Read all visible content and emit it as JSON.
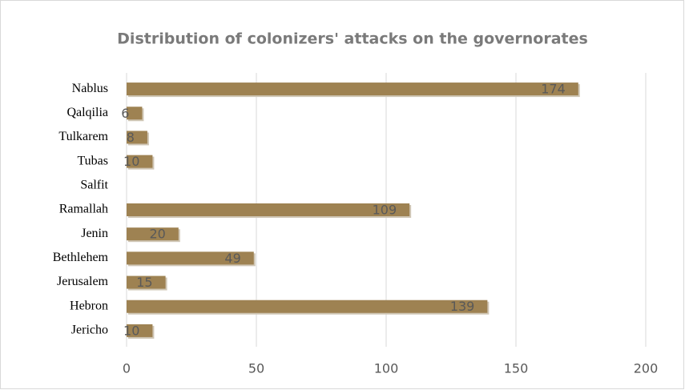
{
  "chart_data": {
    "type": "bar",
    "orientation": "horizontal",
    "title": "Distribution of colonizers' attacks on the governorates",
    "categories": [
      "Nablus",
      "Qalqilia",
      "Tulkarem",
      "Tubas",
      "Salfit",
      "Ramallah",
      "Jenin",
      "Bethlehem",
      "Jerusalem",
      "Hebron",
      "Jericho"
    ],
    "values": [
      174,
      6,
      8,
      10,
      null,
      109,
      20,
      49,
      15,
      139,
      10
    ],
    "color": "#9e8252",
    "xlim": [
      0,
      200
    ],
    "xticks": [
      0,
      50,
      100,
      150,
      200
    ],
    "grid": true
  }
}
